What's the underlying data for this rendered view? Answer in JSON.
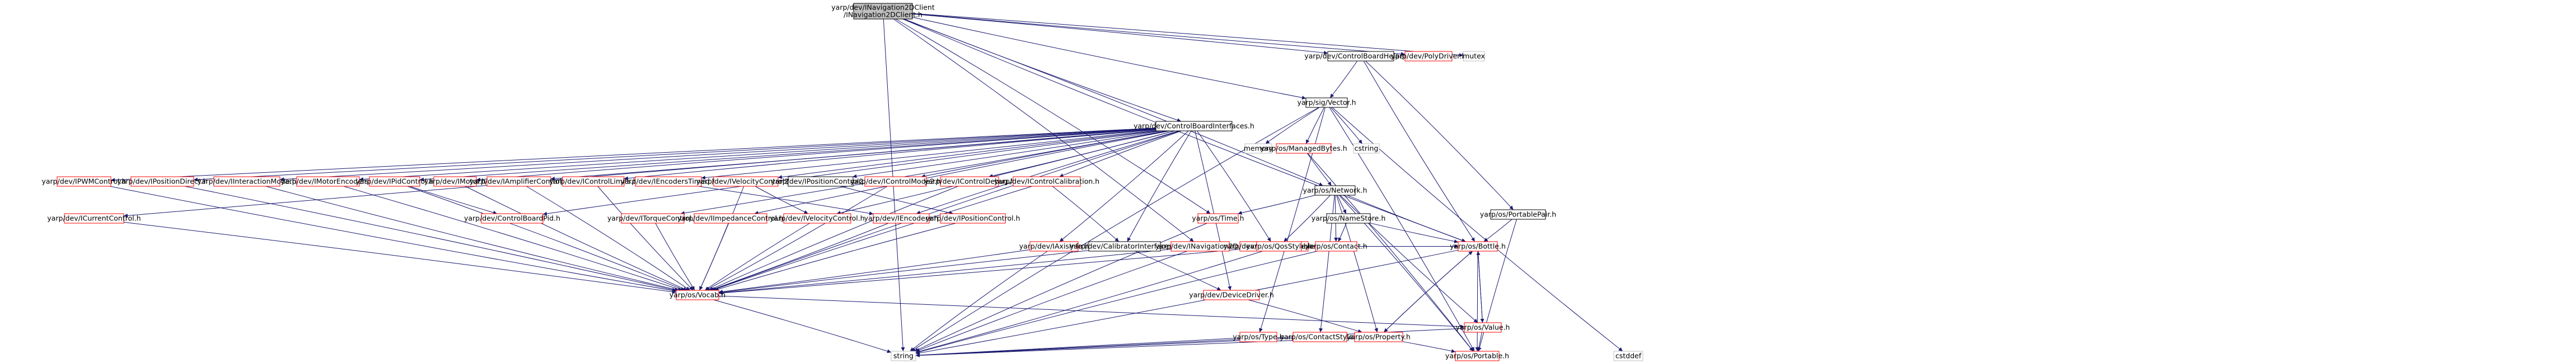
{
  "colors": {
    "edge": "#191970",
    "border_black": "#000000",
    "border_red": "#ff0000",
    "root_fill": "#bfbfbf",
    "node_fill": "#ffffff",
    "text": "#000000"
  },
  "nodes": [
    {
      "id": "root",
      "lines": [
        "yarp/dev/INavigation2DClient",
        "/INavigation2DClient.h"
      ],
      "style": "root"
    },
    {
      "id": "cbhelpers",
      "lines": [
        "yarp/dev/ControlBoardHelpers.h"
      ],
      "style": "black"
    },
    {
      "id": "polydriver",
      "lines": [
        "yarp/dev/PolyDriver.h"
      ],
      "style": "red"
    },
    {
      "id": "mutex",
      "lines": [
        "mutex"
      ],
      "style": "plain"
    },
    {
      "id": "vector",
      "lines": [
        "yarp/sig/Vector.h"
      ],
      "style": "black"
    },
    {
      "id": "memory",
      "lines": [
        "memory"
      ],
      "style": "plain"
    },
    {
      "id": "cstring",
      "lines": [
        "cstring"
      ],
      "style": "plain"
    },
    {
      "id": "managedbytes",
      "lines": [
        "yarp/os/ManagedBytes.h"
      ],
      "style": "red"
    },
    {
      "id": "portablepair",
      "lines": [
        "yarp/os/PortablePair.h"
      ],
      "style": "black"
    },
    {
      "id": "cbi",
      "lines": [
        "yarp/dev/ControlBoardInterfaces.h"
      ],
      "style": "black"
    },
    {
      "id": "network",
      "lines": [
        "yarp/os/Network.h"
      ],
      "style": "black"
    },
    {
      "id": "ipwm",
      "lines": [
        "yarp/dev/IPWMControl.h"
      ],
      "style": "red"
    },
    {
      "id": "iposdirect",
      "lines": [
        "yarp/dev/IPositionDirect.h"
      ],
      "style": "red"
    },
    {
      "id": "iintmode",
      "lines": [
        "yarp/dev/IInteractionMode.h"
      ],
      "style": "red"
    },
    {
      "id": "imotorenc",
      "lines": [
        "yarp/dev/IMotorEncoders.h"
      ],
      "style": "red"
    },
    {
      "id": "ipid",
      "lines": [
        "yarp/dev/IPidControl.h"
      ],
      "style": "red"
    },
    {
      "id": "imotor",
      "lines": [
        "yarp/dev/IMotor.h"
      ],
      "style": "red"
    },
    {
      "id": "iamp",
      "lines": [
        "yarp/dev/IAmplifierControl.h"
      ],
      "style": "red"
    },
    {
      "id": "ilimits",
      "lines": [
        "yarp/dev/IControlLimits.h"
      ],
      "style": "red"
    },
    {
      "id": "ienctimed",
      "lines": [
        "yarp/dev/IEncodersTimed.h"
      ],
      "style": "red"
    },
    {
      "id": "ivel2",
      "lines": [
        "yarp/dev/IVelocityControl2.h"
      ],
      "style": "red"
    },
    {
      "id": "ipos2",
      "lines": [
        "yarp/dev/IPositionControl2.h"
      ],
      "style": "black"
    },
    {
      "id": "imode2",
      "lines": [
        "yarp/dev/IControlMode2.h"
      ],
      "style": "red"
    },
    {
      "id": "idebug",
      "lines": [
        "yarp/dev/IControlDebug.h"
      ],
      "style": "red"
    },
    {
      "id": "icalib",
      "lines": [
        "yarp/dev/IControlCalibration.h"
      ],
      "style": "red"
    },
    {
      "id": "icurrent",
      "lines": [
        "yarp/dev/ICurrentControl.h"
      ],
      "style": "red"
    },
    {
      "id": "cbpid",
      "lines": [
        "yarp/dev/ControlBoardPid.h"
      ],
      "style": "red"
    },
    {
      "id": "itorque",
      "lines": [
        "yarp/dev/ITorqueControl.h"
      ],
      "style": "red"
    },
    {
      "id": "iimpedance",
      "lines": [
        "yarp/dev/IImpedanceControl.h"
      ],
      "style": "red"
    },
    {
      "id": "ivel",
      "lines": [
        "yarp/dev/IVelocityControl.h"
      ],
      "style": "red"
    },
    {
      "id": "iencoders",
      "lines": [
        "yarp/dev/IEncoders.h"
      ],
      "style": "red"
    },
    {
      "id": "iposctrl",
      "lines": [
        "yarp/dev/IPositionControl.h"
      ],
      "style": "red"
    },
    {
      "id": "iaxisinfo",
      "lines": [
        "yarp/dev/IAxisInfo.h"
      ],
      "style": "red"
    },
    {
      "id": "calibiface",
      "lines": [
        "yarp/dev/CalibratorInterfaces.h"
      ],
      "style": "black"
    },
    {
      "id": "inav2d",
      "lines": [
        "yarp/dev/INavigation2D.h"
      ],
      "style": "red"
    },
    {
      "id": "iremotevars",
      "lines": [
        "yarp/dev/IRemoteVariables.h"
      ],
      "style": "red"
    },
    {
      "id": "time",
      "lines": [
        "yarp/os/Time.h"
      ],
      "style": "red"
    },
    {
      "id": "namestore",
      "lines": [
        "yarp/os/NameStore.h"
      ],
      "style": "black"
    },
    {
      "id": "qosstyle",
      "lines": [
        "yarp/os/QosStyle.h"
      ],
      "style": "red"
    },
    {
      "id": "contact",
      "lines": [
        "yarp/os/Contact.h"
      ],
      "style": "red"
    },
    {
      "id": "bottle",
      "lines": [
        "yarp/os/Bottle.h"
      ],
      "style": "red"
    },
    {
      "id": "vocab",
      "lines": [
        "yarp/os/Vocab.h"
      ],
      "style": "red"
    },
    {
      "id": "devicedriver",
      "lines": [
        "yarp/dev/DeviceDriver.h"
      ],
      "style": "red"
    },
    {
      "id": "type",
      "lines": [
        "yarp/os/Type.h"
      ],
      "style": "red"
    },
    {
      "id": "contactstyle",
      "lines": [
        "yarp/os/ContactStyle.h"
      ],
      "style": "red"
    },
    {
      "id": "property",
      "lines": [
        "yarp/os/Property.h"
      ],
      "style": "red"
    },
    {
      "id": "value",
      "lines": [
        "yarp/os/Value.h"
      ],
      "style": "red"
    },
    {
      "id": "portable",
      "lines": [
        "yarp/os/Portable.h"
      ],
      "style": "red"
    },
    {
      "id": "string",
      "lines": [
        "string"
      ],
      "style": "plain"
    },
    {
      "id": "cstddef",
      "lines": [
        "cstddef"
      ],
      "style": "plain"
    }
  ],
  "edges": [
    [
      "root",
      "cbhelpers"
    ],
    [
      "root",
      "polydriver"
    ],
    [
      "root",
      "mutex"
    ],
    [
      "root",
      "cbi"
    ],
    [
      "root",
      "network"
    ],
    [
      "root",
      "vector"
    ],
    [
      "root",
      "time"
    ],
    [
      "root",
      "string"
    ],
    [
      "root",
      "inav2d"
    ],
    [
      "root",
      "bottle"
    ],
    [
      "cbhelpers",
      "vector"
    ],
    [
      "cbhelpers",
      "bottle"
    ],
    [
      "cbhelpers",
      "portablepair"
    ],
    [
      "vector",
      "memory"
    ],
    [
      "vector",
      "cstring"
    ],
    [
      "vector",
      "managedbytes"
    ],
    [
      "vector",
      "type"
    ],
    [
      "vector",
      "string"
    ],
    [
      "vector",
      "portable"
    ],
    [
      "vector",
      "cstddef"
    ],
    [
      "managedbytes",
      "portable"
    ],
    [
      "managedbytes",
      "network"
    ],
    [
      "portablepair",
      "bottle"
    ],
    [
      "portablepair",
      "portable"
    ],
    [
      "cbi",
      "ipwm"
    ],
    [
      "cbi",
      "iposdirect"
    ],
    [
      "cbi",
      "iintmode"
    ],
    [
      "cbi",
      "imotorenc"
    ],
    [
      "cbi",
      "ipid"
    ],
    [
      "cbi",
      "imotor"
    ],
    [
      "cbi",
      "iamp"
    ],
    [
      "cbi",
      "ilimits"
    ],
    [
      "cbi",
      "ienctimed"
    ],
    [
      "cbi",
      "ivel2"
    ],
    [
      "cbi",
      "ipos2"
    ],
    [
      "cbi",
      "imode2"
    ],
    [
      "cbi",
      "idebug"
    ],
    [
      "cbi",
      "icalib"
    ],
    [
      "cbi",
      "icurrent"
    ],
    [
      "cbi",
      "cbpid"
    ],
    [
      "cbi",
      "itorque"
    ],
    [
      "cbi",
      "iimpedance"
    ],
    [
      "cbi",
      "ivel"
    ],
    [
      "cbi",
      "iencoders"
    ],
    [
      "cbi",
      "iaxisinfo"
    ],
    [
      "cbi",
      "calibiface"
    ],
    [
      "cbi",
      "iremotevars"
    ],
    [
      "cbi",
      "vocab"
    ],
    [
      "cbi",
      "devicedriver"
    ],
    [
      "ipwm",
      "vocab"
    ],
    [
      "iposdirect",
      "vocab"
    ],
    [
      "iintmode",
      "vocab"
    ],
    [
      "imotorenc",
      "vocab"
    ],
    [
      "ipid",
      "cbpid"
    ],
    [
      "ipid",
      "vocab"
    ],
    [
      "imotor",
      "vocab"
    ],
    [
      "iamp",
      "vocab"
    ],
    [
      "ilimits",
      "vocab"
    ],
    [
      "ienctimed",
      "iencoders"
    ],
    [
      "ivel2",
      "ivel"
    ],
    [
      "ivel2",
      "vocab"
    ],
    [
      "ipos2",
      "iposctrl"
    ],
    [
      "imode2",
      "vocab"
    ],
    [
      "idebug",
      "vocab"
    ],
    [
      "icalib",
      "calibiface"
    ],
    [
      "icalib",
      "vocab"
    ],
    [
      "icurrent",
      "vocab"
    ],
    [
      "itorque",
      "vocab"
    ],
    [
      "iimpedance",
      "vocab"
    ],
    [
      "ivel",
      "vocab"
    ],
    [
      "iencoders",
      "vocab"
    ],
    [
      "iposctrl",
      "vocab"
    ],
    [
      "iaxisinfo",
      "vocab"
    ],
    [
      "iaxisinfo",
      "string"
    ],
    [
      "calibiface",
      "devicedriver"
    ],
    [
      "calibiface",
      "vocab"
    ],
    [
      "inav2d",
      "vocab"
    ],
    [
      "inav2d",
      "string"
    ],
    [
      "iremotevars",
      "vocab"
    ],
    [
      "iremotevars",
      "bottle"
    ],
    [
      "network",
      "time"
    ],
    [
      "network",
      "namestore"
    ],
    [
      "network",
      "qosstyle"
    ],
    [
      "network",
      "contact"
    ],
    [
      "network",
      "contactstyle"
    ],
    [
      "network",
      "bottle"
    ],
    [
      "network",
      "property"
    ],
    [
      "network",
      "value"
    ],
    [
      "network",
      "portable"
    ],
    [
      "time",
      "string"
    ],
    [
      "namestore",
      "contact"
    ],
    [
      "namestore",
      "bottle"
    ],
    [
      "qosstyle",
      "string"
    ],
    [
      "contact",
      "string"
    ],
    [
      "vocab",
      "string"
    ],
    [
      "vocab",
      "value"
    ],
    [
      "devicedriver",
      "property"
    ],
    [
      "bottle",
      "value"
    ],
    [
      "bottle",
      "string"
    ],
    [
      "bottle",
      "property"
    ],
    [
      "bottle",
      "portable"
    ],
    [
      "value",
      "bottle"
    ],
    [
      "value",
      "portable"
    ],
    [
      "value",
      "string"
    ],
    [
      "contactstyle",
      "string"
    ],
    [
      "property",
      "bottle"
    ],
    [
      "property",
      "portable"
    ],
    [
      "property",
      "string"
    ],
    [
      "type",
      "string"
    ]
  ]
}
